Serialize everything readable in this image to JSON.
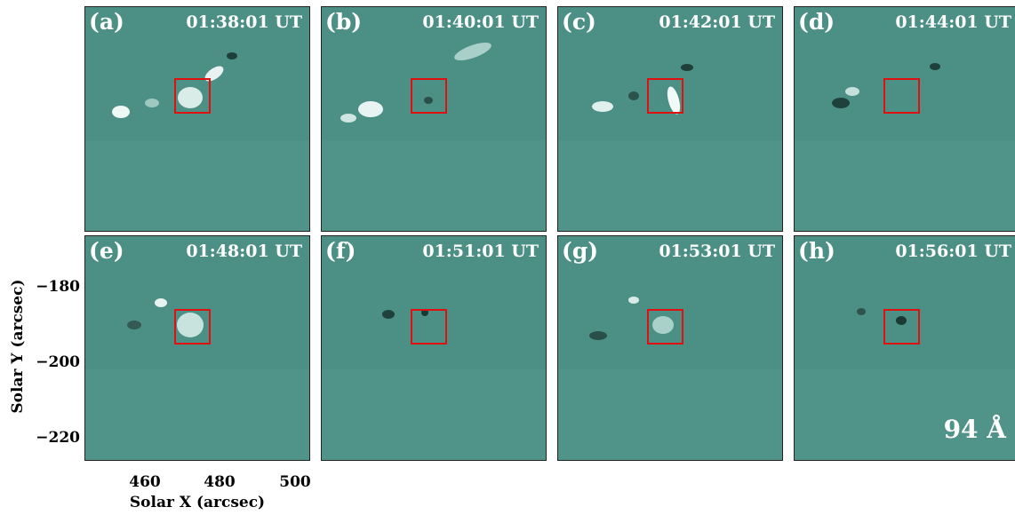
{
  "panels": [
    {
      "label": "(a)",
      "time": "01:38:01 UT"
    },
    {
      "label": "(b)",
      "time": "01:40:01 UT"
    },
    {
      "label": "(c)",
      "time": "01:42:01 UT"
    },
    {
      "label": "(d)",
      "time": "01:44:01 UT"
    },
    {
      "label": "(e)",
      "time": "01:48:01 UT"
    },
    {
      "label": "(f)",
      "time": "01:51:01 UT"
    },
    {
      "label": "(g)",
      "time": "01:53:01 UT"
    },
    {
      "label": "(h)",
      "time": "01:56:01 UT"
    }
  ],
  "wavelength": "94 Å",
  "axes": {
    "ylabel": "Solar Y (arcsec)",
    "xlabel": "Solar X (arcsec)",
    "yticks": [
      "−180",
      "−200",
      "−220"
    ],
    "xticks": [
      "460",
      "480",
      "500"
    ]
  },
  "colors": {
    "background": "#4c8f85",
    "box": "#e01010"
  }
}
